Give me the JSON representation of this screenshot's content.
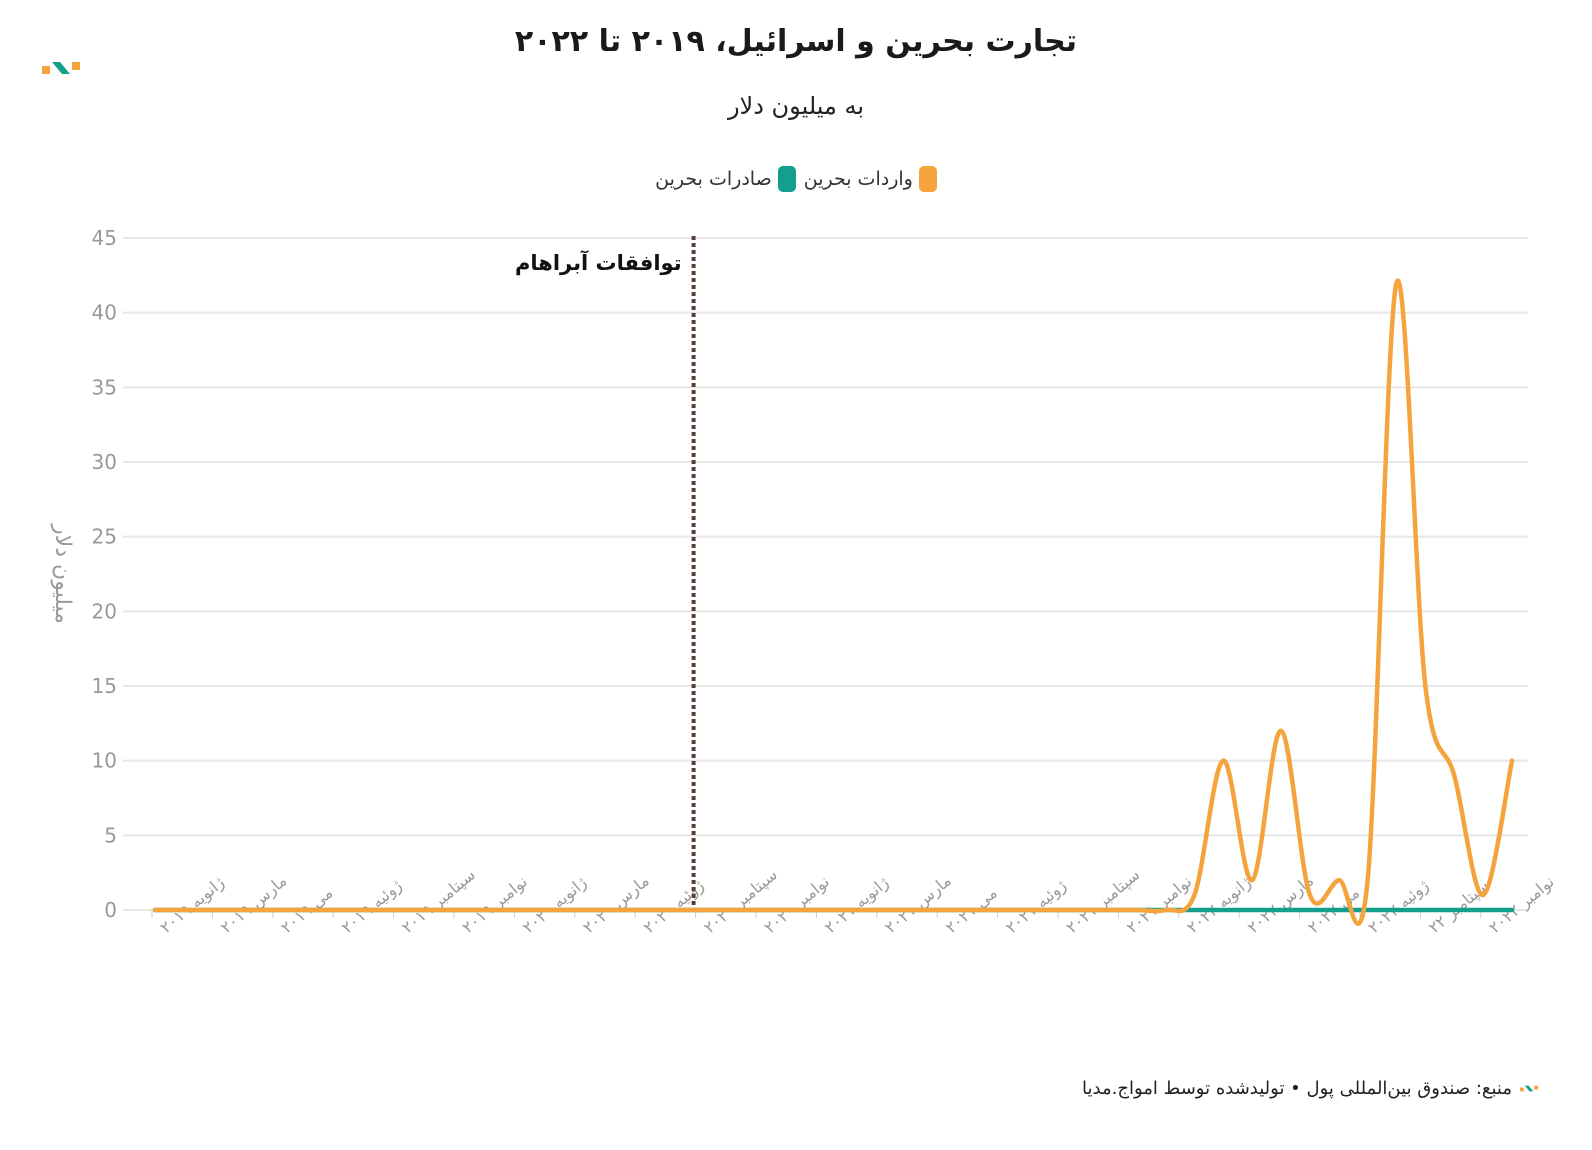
{
  "title": "تجارت بحرین و اسرائیل، ۲۰۱۹ تا ۲۰۲۲",
  "subtitle": "به میلیون دلار",
  "footer": "منبع: صندوق بین‌المللی پول • تولیدشده توسط امواج.مدیا",
  "colors": {
    "imports": "#f5a33c",
    "exports": "#12a08c",
    "marker": "#5a3e36",
    "axis": "#999999"
  },
  "chart_data": {
    "type": "line",
    "ylabel": "میلیون دلار",
    "ylim": [
      0,
      45
    ],
    "yticks": [
      "0",
      "5",
      "10",
      "15",
      "20",
      "25",
      "30",
      "35",
      "40",
      "45"
    ],
    "grid": true,
    "legend_position": "top-center",
    "x_tick_labels": [
      "ژانویه ۲۰۱۹",
      "مارس ۲۰۱۹",
      "می ۲۰۱۹",
      "ژوئیه ۲۰۱۹",
      "سپتامبر ۲۰۱۹",
      "نوامبر ۲۰۱۹",
      "ژانویه ۲۰۲۰",
      "مارس ۲۰۲۰",
      "ژوئیه ۲۰۲۰",
      "سپتامبر ۲۰۲۰",
      "نوامبر ۲۰۲۰",
      "ژانویه ۲۰۲۱",
      "مارس ۲۰۲۱",
      "می ۲۰۲۱",
      "ژوئیه ۲۰۲۱",
      "سپتامبر ۲۰۲۱",
      "نوامبر ۲۰۲۱",
      "ژانویه ۲۰۲۲",
      "مارس ۲۰۲۲",
      "می ۲۰۲۲",
      "ژوئیه ۲۰۲۲",
      "سپتامبر ۲۲",
      "نوامبر ۲۰۲۲"
    ],
    "annotation": {
      "label": "توافقات آبراهام",
      "x_label": "سپتامبر ۲۰۲۰"
    },
    "series": [
      {
        "name": "واردات بحرین",
        "key": "imports",
        "values": [
          0,
          0,
          0,
          0,
          0,
          0,
          0,
          0,
          0,
          0,
          0,
          0,
          0,
          0,
          0,
          0,
          0,
          0,
          0,
          0,
          0,
          0,
          0,
          0,
          0,
          0,
          0,
          0,
          0,
          0,
          0,
          0,
          0,
          0,
          0,
          0,
          1,
          10,
          2,
          12,
          1,
          2,
          2,
          42,
          15,
          9,
          1,
          10
        ]
      },
      {
        "name": "صادرات بحرین",
        "key": "exports",
        "values": [
          0,
          0,
          0,
          0,
          0,
          0,
          0,
          0,
          0,
          0,
          0,
          0,
          0,
          0,
          0,
          0,
          0,
          0,
          0,
          0,
          0,
          0,
          0,
          0,
          0,
          0,
          0,
          0,
          0,
          0,
          0,
          0,
          0,
          0,
          0,
          0,
          0,
          0,
          0,
          0,
          0,
          0,
          0,
          0,
          0,
          0,
          0,
          0
        ]
      }
    ]
  }
}
